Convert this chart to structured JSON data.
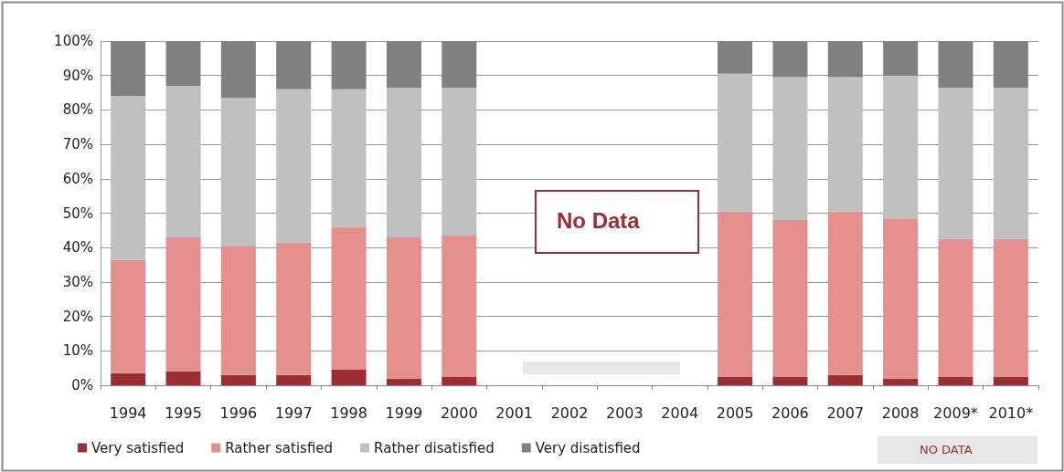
{
  "chart_data": {
    "type": "bar",
    "stacked": true,
    "categories": [
      "1994",
      "1995",
      "1996",
      "1997",
      "1998",
      "1999",
      "2000",
      "2001",
      "2002",
      "2003",
      "2004",
      "2005",
      "2006",
      "2007",
      "2008",
      "2009*",
      "2010*"
    ],
    "series": [
      {
        "name": "Very satisfied",
        "color": "#9b2d35",
        "values": [
          3.5,
          4,
          3,
          3,
          4.5,
          2,
          2.5,
          null,
          null,
          null,
          null,
          2.5,
          2.5,
          3,
          2,
          2.5,
          2.5
        ]
      },
      {
        "name": "Rather satisfied",
        "color": "#e58f8f",
        "values": [
          33,
          39,
          37.5,
          38.5,
          41.5,
          41,
          41,
          null,
          null,
          null,
          null,
          48,
          45.5,
          47.5,
          46.5,
          40,
          40
        ]
      },
      {
        "name": "Rather disatisfied",
        "color": "#c0c0c0",
        "values": [
          47.5,
          44,
          43,
          44.5,
          40,
          43.5,
          43,
          null,
          null,
          null,
          null,
          40,
          41.5,
          39,
          41.5,
          44,
          44
        ]
      },
      {
        "name": "Very disatisfied",
        "color": "#808080",
        "values": [
          16,
          13,
          16.5,
          14,
          14,
          13.5,
          13.5,
          null,
          null,
          null,
          null,
          9.5,
          10.5,
          10.5,
          10,
          13.5,
          13.5
        ]
      }
    ],
    "ylim": [
      0,
      100
    ],
    "yticks": [
      {
        "value": 0,
        "label": "0%"
      },
      {
        "value": 10,
        "label": "10%"
      },
      {
        "value": 20,
        "label": "20%"
      },
      {
        "value": 30,
        "label": "30%"
      },
      {
        "value": 40,
        "label": "40%"
      },
      {
        "value": 50,
        "label": "50%"
      },
      {
        "value": 60,
        "label": "60%"
      },
      {
        "value": 70,
        "label": "70%"
      },
      {
        "value": 80,
        "label": "80%"
      },
      {
        "value": 90,
        "label": "90%"
      },
      {
        "value": 100,
        "label": "100%"
      }
    ],
    "grid": "y",
    "legend": "bottom left",
    "annotations": [
      "No Data",
      "NO DATA"
    ]
  }
}
